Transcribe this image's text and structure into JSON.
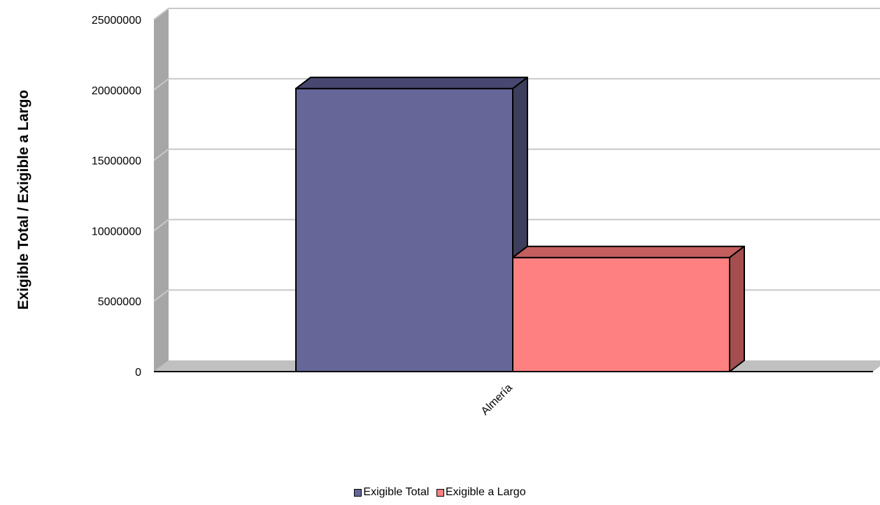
{
  "chart_data": {
    "type": "bar",
    "categories": [
      "Almería"
    ],
    "series": [
      {
        "name": "Exigible Total",
        "values": [
          20100000
        ]
      },
      {
        "name": "Exigible a Largo",
        "values": [
          8100000
        ]
      }
    ],
    "ylabel": "Exigible Total / Exigible a Largo",
    "xlabel": "",
    "ylim": [
      0,
      25000000
    ],
    "yticks": [
      "0",
      "5000000",
      "10000000",
      "15000000",
      "20000000",
      "25000000"
    ],
    "grid": true,
    "legend_position": "bottom",
    "three_d": true,
    "colors": {
      "series": [
        "#666699",
        "#FF8080"
      ],
      "series_side": [
        "#3d3d5c",
        "#a34f4f"
      ],
      "series_top": [
        "#474770",
        "#c45f5f"
      ],
      "wall": "#c0c0c0",
      "wall_side": "#a6a6a6",
      "gridline": "#c8c8c8"
    }
  }
}
